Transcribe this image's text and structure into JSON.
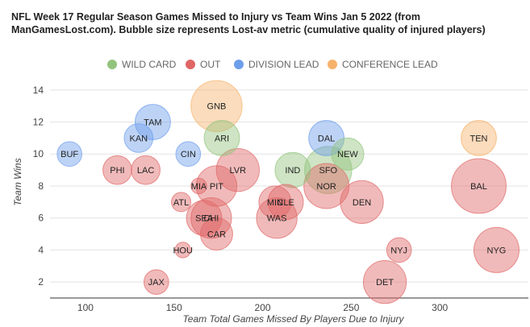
{
  "title": "NFL Week 17 Regular Season Games Missed to Injury vs Team Wins Jan 5 2022 (from ManGamesLost.com). Bubble size represents Lost-av metric (cumulative quality of injured players)",
  "chart_data": {
    "type": "bubble",
    "xlabel": "Team Total Games Missed By Players Due to Injury",
    "ylabel": "Team Wins",
    "xlim": [
      80,
      350
    ],
    "ylim": [
      1,
      15.5
    ],
    "xticks": [
      100,
      150,
      200,
      250,
      300
    ],
    "yticks": [
      2,
      4,
      6,
      8,
      10,
      12,
      14
    ],
    "grid": true,
    "legend_position": "top",
    "series": [
      {
        "name": "WILD CARD",
        "color": "#93c47d"
      },
      {
        "name": "OUT",
        "color": "#e06666"
      },
      {
        "name": "DIVISION LEAD",
        "color": "#6d9eeb"
      },
      {
        "name": "CONFERENCE LEAD",
        "color": "#f6b26b"
      }
    ],
    "points": [
      {
        "label": "BUF",
        "x": 91,
        "y": 10,
        "size": 2,
        "series": "DIVISION LEAD"
      },
      {
        "label": "KAN",
        "x": 130,
        "y": 11,
        "size": 3,
        "series": "DIVISION LEAD"
      },
      {
        "label": "TAM",
        "x": 138,
        "y": 12,
        "size": 5,
        "series": "DIVISION LEAD"
      },
      {
        "label": "CIN",
        "x": 158,
        "y": 10,
        "size": 2,
        "series": "DIVISION LEAD"
      },
      {
        "label": "DAL",
        "x": 236,
        "y": 11,
        "size": 5,
        "series": "DIVISION LEAD"
      },
      {
        "label": "GNB",
        "x": 174,
        "y": 13,
        "size": 12,
        "series": "CONFERENCE LEAD"
      },
      {
        "label": "TEN",
        "x": 322,
        "y": 11,
        "size": 5,
        "series": "CONFERENCE LEAD"
      },
      {
        "label": "ARI",
        "x": 177,
        "y": 11,
        "size": 5,
        "series": "WILD CARD"
      },
      {
        "label": "IND",
        "x": 217,
        "y": 9,
        "size": 5,
        "series": "WILD CARD"
      },
      {
        "label": "SFO",
        "x": 237,
        "y": 9,
        "size": 10,
        "series": "WILD CARD"
      },
      {
        "label": "NEW",
        "x": 248,
        "y": 10,
        "size": 4,
        "series": "WILD CARD"
      },
      {
        "label": "PHI",
        "x": 118,
        "y": 9,
        "size": 3,
        "series": "OUT"
      },
      {
        "label": "LAC",
        "x": 134,
        "y": 9,
        "size": 3,
        "series": "OUT"
      },
      {
        "label": "MIA",
        "x": 164,
        "y": 8,
        "size": 0.5,
        "series": "OUT"
      },
      {
        "label": "PIT",
        "x": 174,
        "y": 8,
        "size": 7,
        "series": "OUT"
      },
      {
        "label": "LVR",
        "x": 186,
        "y": 9,
        "size": 8,
        "series": "OUT"
      },
      {
        "label": "NOR",
        "x": 236,
        "y": 8,
        "size": 9,
        "series": "OUT"
      },
      {
        "label": "BAL",
        "x": 322,
        "y": 8,
        "size": 14,
        "series": "OUT"
      },
      {
        "label": "ATL",
        "x": 154,
        "y": 7,
        "size": 1,
        "series": "OUT"
      },
      {
        "label": "MIN",
        "x": 207,
        "y": 7,
        "size": 4,
        "series": "OUT"
      },
      {
        "label": "CLE",
        "x": 213,
        "y": 7,
        "size": 5,
        "series": "OUT"
      },
      {
        "label": "DEN",
        "x": 256,
        "y": 7,
        "size": 8,
        "series": "OUT"
      },
      {
        "label": "SEA",
        "x": 167,
        "y": 6,
        "size": 5,
        "series": "OUT"
      },
      {
        "label": "CHI",
        "x": 171,
        "y": 6,
        "size": 7,
        "series": "OUT"
      },
      {
        "label": "WAS",
        "x": 208,
        "y": 6,
        "size": 7,
        "series": "OUT"
      },
      {
        "label": "CAR",
        "x": 174,
        "y": 5,
        "size": 4,
        "series": "OUT"
      },
      {
        "label": "HOU",
        "x": 155,
        "y": 4,
        "size": 0.5,
        "series": "OUT"
      },
      {
        "label": "NYJ",
        "x": 277,
        "y": 4,
        "size": 2,
        "series": "OUT"
      },
      {
        "label": "NYG",
        "x": 332,
        "y": 4,
        "size": 9,
        "series": "OUT"
      },
      {
        "label": "JAX",
        "x": 140,
        "y": 2,
        "size": 2,
        "series": "OUT"
      },
      {
        "label": "DET",
        "x": 269,
        "y": 2,
        "size": 8,
        "series": "OUT"
      }
    ]
  }
}
